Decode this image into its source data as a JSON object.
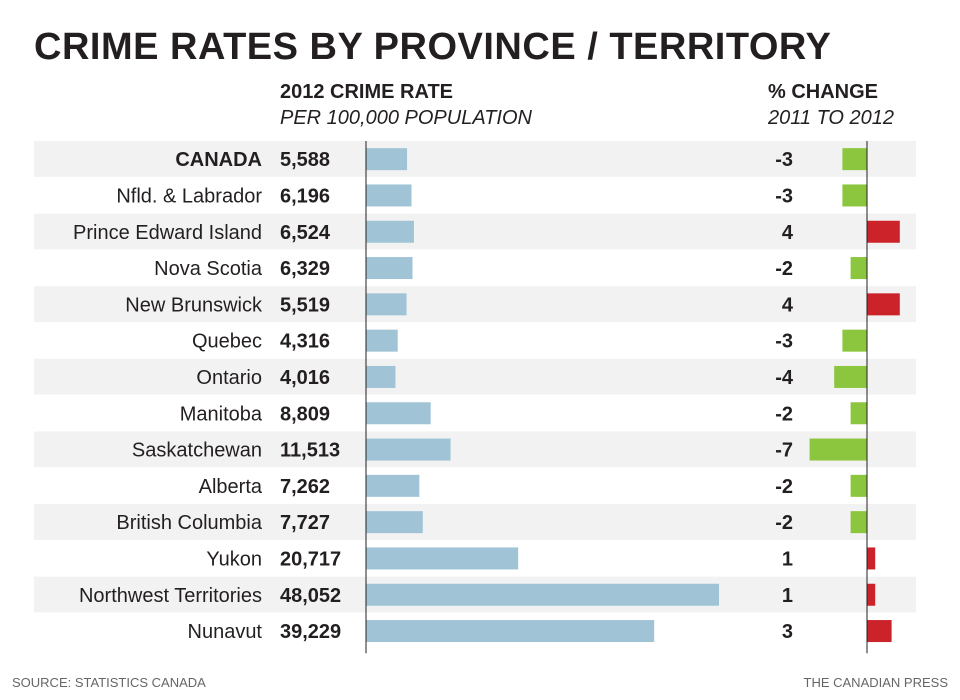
{
  "title": "CRIME RATES BY PROVINCE / TERRITORY",
  "headers": {
    "rate_main": "2012 CRIME RATE",
    "rate_sub": "PER 100,000 POPULATION",
    "change_main": "% CHANGE",
    "change_sub": "2011 TO 2012"
  },
  "footer": {
    "source": "SOURCE: STATISTICS CANADA",
    "credit": "THE CANADIAN PRESS"
  },
  "colors": {
    "rate_bar": "#a0c4d6",
    "increase": "#cc2229",
    "decrease": "#8cc63f",
    "stripe": "#f2f2f2",
    "axis": "#231f20"
  },
  "chart_data": {
    "type": "bar",
    "categories": [
      "CANADA",
      "Nfld. & Labrador",
      "Prince Edward Island",
      "Nova Scotia",
      "New Brunswick",
      "Quebec",
      "Ontario",
      "Manitoba",
      "Saskatchewan",
      "Alberta",
      "British Columbia",
      "Yukon",
      "Northwest Territories",
      "Nunavut"
    ],
    "series": [
      {
        "name": "2012 CRIME RATE",
        "values": [
          5588,
          6196,
          6524,
          6329,
          5519,
          4316,
          4016,
          8809,
          11513,
          7262,
          7727,
          20717,
          48052,
          39229
        ],
        "labels": [
          "5,588",
          "6,196",
          "6,524",
          "6,329",
          "5,519",
          "4,316",
          "4,016",
          "8,809",
          "11,513",
          "7,262",
          "7,727",
          "20,717",
          "48,052",
          "39,229"
        ]
      },
      {
        "name": "% CHANGE",
        "values": [
          -3,
          -3,
          4,
          -2,
          4,
          -3,
          -4,
          -2,
          -7,
          -2,
          -2,
          1,
          1,
          3
        ],
        "labels": [
          "-3",
          "-3",
          "4",
          "-2",
          "4",
          "-3",
          "-4",
          "-2",
          "-7",
          "-2",
          "-2",
          "1",
          "1",
          "3"
        ]
      }
    ],
    "bold_category": "CANADA",
    "rate_range": [
      0,
      48052
    ],
    "change_range": [
      -7,
      4
    ]
  }
}
